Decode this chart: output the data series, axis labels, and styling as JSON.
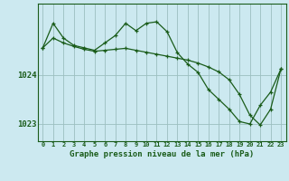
{
  "xlabel": "Graphe pression niveau de la mer (hPa)",
  "background_color": "#cce9f0",
  "grid_color": "#9bbfbf",
  "line_color": "#1a5c1a",
  "hours": [
    0,
    1,
    2,
    3,
    4,
    5,
    6,
    7,
    8,
    9,
    10,
    11,
    12,
    13,
    14,
    15,
    16,
    17,
    18,
    19,
    20,
    21,
    22,
    23
  ],
  "series1": [
    1024.55,
    1025.05,
    1024.75,
    1024.6,
    1024.55,
    1024.5,
    1024.65,
    1024.8,
    1025.05,
    1024.9,
    1025.05,
    1025.08,
    1024.88,
    1024.45,
    1024.22,
    1024.05,
    1023.7,
    1023.5,
    1023.3,
    1023.05,
    1023.0,
    1023.38,
    1023.65,
    1024.12
  ],
  "series2": [
    1024.55,
    1024.75,
    1024.65,
    1024.58,
    1024.52,
    1024.48,
    1024.5,
    1024.52,
    1024.54,
    1024.5,
    1024.46,
    1024.42,
    1024.38,
    1024.34,
    1024.3,
    1024.24,
    1024.16,
    1024.06,
    1023.9,
    1023.6,
    1023.18,
    1022.98,
    1023.3,
    1024.12
  ],
  "ylim_min": 1022.65,
  "ylim_max": 1025.45,
  "yticks": [
    1023,
    1024
  ],
  "xlim_min": -0.5,
  "xlim_max": 23.5
}
